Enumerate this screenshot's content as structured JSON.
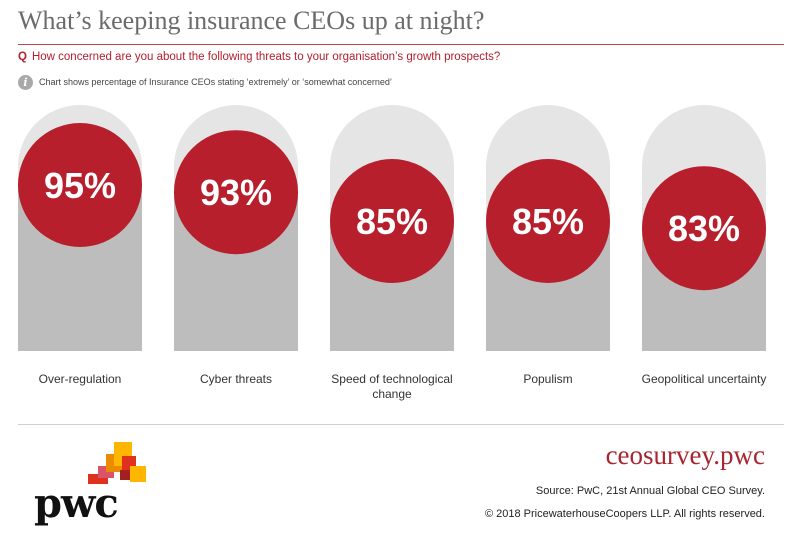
{
  "header": {
    "title": "What’s keeping insurance CEOs up at night?",
    "question_prefix": "Q",
    "question": "How concerned are you about the following threats to your organisation’s growth prospects?",
    "note": "Chart shows percentage of Insurance CEOs stating ‘extremely’ or ‘somewhat concerned’"
  },
  "chart_data": {
    "type": "bar",
    "categories": [
      "Over-regulation",
      "Cyber threats",
      "Speed of technological change",
      "Populism",
      "Geopolitical uncertainty"
    ],
    "category_lines": [
      [
        "Over-regulation"
      ],
      [
        "Cyber threats"
      ],
      [
        "Speed of technological",
        "change"
      ],
      [
        "Populism"
      ],
      [
        "Geopolitical uncertainty"
      ]
    ],
    "values": [
      95,
      93,
      85,
      85,
      83
    ],
    "value_labels": [
      "95%",
      "93%",
      "85%",
      "85%",
      "83%"
    ],
    "ylim": [
      0,
      100
    ],
    "colors": {
      "circle": "#b71f2c",
      "bar": "#bdbdbd",
      "track": "#e5e5e5",
      "value_text": "#ffffff"
    }
  },
  "footer": {
    "logo_text": "pwc",
    "website": "ceosurvey.pwc",
    "source": "Source: PwC, 21st Annual Global CEO Survey.",
    "copyright": "© 2018 PricewaterhouseCoopers LLP. All rights reserved."
  }
}
